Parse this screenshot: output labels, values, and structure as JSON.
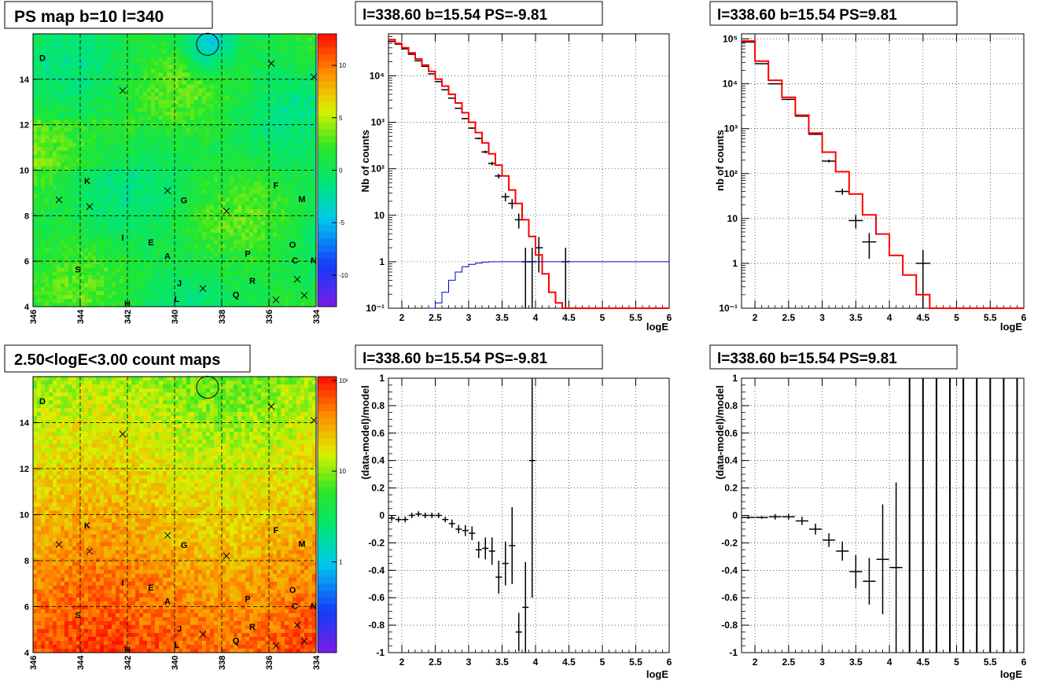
{
  "palette": {
    "background": "#ffffff",
    "axis": "#000000",
    "grid": "#000000",
    "data_series": "#000000",
    "model_series": "#ff0000",
    "background_model_series": "#0000cc"
  },
  "chart_data": [
    {
      "type": "heatmap",
      "title": "PS map b=10 l=340",
      "x_ticks": [
        "346",
        "344",
        "342",
        "340",
        "338",
        "336",
        "334"
      ],
      "y_ticks": [
        "4",
        "6",
        "8",
        "10",
        "12",
        "14"
      ],
      "xlim": [
        346,
        334
      ],
      "ylim": [
        4,
        16
      ],
      "grid": true,
      "circle_marker": {
        "l": 338.6,
        "b": 15.54
      },
      "colorbar": {
        "scale": "linear",
        "ticks": [
          "10",
          "5",
          "0",
          "-5",
          "-10"
        ],
        "range": [
          -13,
          13
        ]
      },
      "sources": [
        {
          "label": "D",
          "l": 345.6,
          "b": 14.8
        },
        {
          "label": "K",
          "l": 343.7,
          "b": 9.4
        },
        {
          "label": "G",
          "l": 339.6,
          "b": 8.55
        },
        {
          "label": "F",
          "l": 335.7,
          "b": 9.2
        },
        {
          "label": "M",
          "l": 334.6,
          "b": 8.6
        },
        {
          "label": "I",
          "l": 342.2,
          "b": 6.9
        },
        {
          "label": "E",
          "l": 341.0,
          "b": 6.7
        },
        {
          "label": "A",
          "l": 340.3,
          "b": 6.1
        },
        {
          "label": "P",
          "l": 336.9,
          "b": 6.2
        },
        {
          "label": "O",
          "l": 335.0,
          "b": 6.6
        },
        {
          "label": "C",
          "l": 334.9,
          "b": 5.9
        },
        {
          "label": "N",
          "l": 334.1,
          "b": 5.9
        },
        {
          "label": "S",
          "l": 344.1,
          "b": 5.5
        },
        {
          "label": "J",
          "l": 339.8,
          "b": 4.9
        },
        {
          "label": "R",
          "l": 336.7,
          "b": 5.0
        },
        {
          "label": "L",
          "l": 339.9,
          "b": 4.2
        },
        {
          "label": "Q",
          "l": 337.4,
          "b": 4.4
        },
        {
          "label": "H",
          "l": 342.0,
          "b": 4.0
        }
      ],
      "cross_markers": [
        {
          "l": 335.9,
          "b": 14.7
        },
        {
          "l": 342.2,
          "b": 13.5
        },
        {
          "l": 334.1,
          "b": 14.1
        },
        {
          "l": 344.9,
          "b": 8.7
        },
        {
          "l": 343.6,
          "b": 8.4
        },
        {
          "l": 340.3,
          "b": 9.1
        },
        {
          "l": 337.8,
          "b": 8.2
        },
        {
          "l": 338.8,
          "b": 4.8
        },
        {
          "l": 335.7,
          "b": 4.3
        },
        {
          "l": 334.8,
          "b": 5.2
        },
        {
          "l": 334.5,
          "b": 4.5
        }
      ]
    },
    {
      "type": "line",
      "title": "l=338.60 b=15.54 PS=-9.81",
      "xlabel": "logE",
      "ylabel": "Nb of counts",
      "y_scale": "log",
      "xlim": [
        1.8,
        6
      ],
      "ylim": [
        0.1,
        80000
      ],
      "x_ticks": [
        "2",
        "2.5",
        "3",
        "3.5",
        "4",
        "4.5",
        "5",
        "5.5",
        "6"
      ],
      "y_ticks": [
        {
          "v": 0.1,
          "label": "10⁻¹"
        },
        {
          "v": 1,
          "label": "1"
        },
        {
          "v": 10,
          "label": "10"
        },
        {
          "v": 100,
          "label": "10²"
        },
        {
          "v": 1000,
          "label": "10³"
        },
        {
          "v": 10000,
          "label": "10⁴"
        }
      ],
      "grid": true,
      "series": [
        {
          "kind": "data",
          "points": [
            [
              1.85,
              55000
            ],
            [
              1.95,
              48000
            ],
            [
              2.05,
              38000
            ],
            [
              2.15,
              29000
            ],
            [
              2.25,
              21000
            ],
            [
              2.35,
              16000
            ],
            [
              2.45,
              11000
            ],
            [
              2.55,
              7500
            ],
            [
              2.65,
              5000
            ],
            [
              2.75,
              3300
            ],
            [
              2.85,
              2000
            ],
            [
              2.95,
              1200
            ],
            [
              3.05,
              750
            ],
            [
              3.15,
              450
            ],
            [
              3.25,
              230
            ],
            [
              3.35,
              130
            ],
            [
              3.45,
              70
            ],
            [
              3.55,
              25
            ],
            [
              3.65,
              18
            ],
            [
              3.75,
              8
            ],
            [
              3.85,
              1
            ],
            [
              3.95,
              1
            ],
            [
              4.05,
              2
            ],
            [
              4.45,
              1
            ]
          ]
        },
        {
          "kind": "model",
          "steps": [
            [
              1.8,
              60000
            ],
            [
              1.9,
              50000
            ],
            [
              2.0,
              40000
            ],
            [
              2.1,
              31000
            ],
            [
              2.2,
              23000
            ],
            [
              2.3,
              17000
            ],
            [
              2.4,
              12500
            ],
            [
              2.5,
              8500
            ],
            [
              2.6,
              6000
            ],
            [
              2.7,
              4000
            ],
            [
              2.8,
              2600
            ],
            [
              2.9,
              1600
            ],
            [
              3.0,
              1000
            ],
            [
              3.1,
              600
            ],
            [
              3.2,
              360
            ],
            [
              3.3,
              210
            ],
            [
              3.4,
              120
            ],
            [
              3.5,
              70
            ],
            [
              3.6,
              35
            ],
            [
              3.7,
              18
            ],
            [
              3.8,
              8
            ],
            [
              3.9,
              3.5
            ],
            [
              4.0,
              1.4
            ],
            [
              4.1,
              0.55
            ],
            [
              4.2,
              0.22
            ],
            [
              4.3,
              0.13
            ],
            [
              4.4,
              0.1
            ],
            [
              6.0,
              0.1
            ]
          ]
        },
        {
          "kind": "background_model",
          "steps": [
            [
              2.4,
              0.1
            ],
            [
              2.5,
              0.13
            ],
            [
              2.6,
              0.22
            ],
            [
              2.7,
              0.4
            ],
            [
              2.8,
              0.6
            ],
            [
              2.9,
              0.78
            ],
            [
              3.0,
              0.88
            ],
            [
              3.1,
              0.94
            ],
            [
              3.2,
              0.98
            ],
            [
              3.3,
              1.0
            ],
            [
              6.0,
              1.0
            ]
          ]
        }
      ]
    },
    {
      "type": "line",
      "title": "l=338.60 b=15.54 PS=9.81",
      "xlabel": "logE",
      "ylabel": "nb of counts",
      "y_scale": "log",
      "xlim": [
        1.8,
        6
      ],
      "ylim": [
        0.1,
        130000
      ],
      "x_ticks": [
        "2",
        "2.5",
        "3",
        "3.5",
        "4",
        "4.5",
        "5",
        "5.5",
        "6"
      ],
      "y_ticks": [
        {
          "v": 0.1,
          "label": "10⁻¹"
        },
        {
          "v": 1,
          "label": "1"
        },
        {
          "v": 10,
          "label": "10"
        },
        {
          "v": 100,
          "label": "10²"
        },
        {
          "v": 1000,
          "label": "10³"
        },
        {
          "v": 10000,
          "label": "10⁴"
        },
        {
          "v": 100000,
          "label": "10⁵"
        }
      ],
      "grid": true,
      "series": [
        {
          "kind": "data",
          "points": [
            [
              1.9,
              85000
            ],
            [
              2.1,
              28000
            ],
            [
              2.3,
              10000
            ],
            [
              2.5,
              4500
            ],
            [
              2.7,
              1900
            ],
            [
              2.9,
              750
            ],
            [
              3.1,
              190
            ],
            [
              3.3,
              40
            ],
            [
              3.5,
              9
            ],
            [
              3.7,
              3
            ],
            [
              4.5,
              1
            ]
          ]
        },
        {
          "kind": "model",
          "steps": [
            [
              1.8,
              90000
            ],
            [
              2.0,
              32000
            ],
            [
              2.2,
              12000
            ],
            [
              2.4,
              5000
            ],
            [
              2.6,
              2000
            ],
            [
              2.8,
              800
            ],
            [
              3.0,
              300
            ],
            [
              3.2,
              110
            ],
            [
              3.4,
              35
            ],
            [
              3.6,
              12
            ],
            [
              3.8,
              4.5
            ],
            [
              4.0,
              1.5
            ],
            [
              4.2,
              0.55
            ],
            [
              4.4,
              0.2
            ],
            [
              4.6,
              0.1
            ],
            [
              6.0,
              0.1
            ]
          ]
        }
      ]
    },
    {
      "type": "heatmap",
      "title": "2.50<logE<3.00 count maps",
      "x_ticks": [
        "346",
        "344",
        "342",
        "340",
        "338",
        "336",
        "334"
      ],
      "y_ticks": [
        "4",
        "6",
        "8",
        "10",
        "12",
        "14"
      ],
      "xlim": [
        346,
        334
      ],
      "ylim": [
        4,
        16
      ],
      "grid": true,
      "circle_marker": {
        "l": 338.6,
        "b": 15.54
      },
      "colorbar": {
        "scale": "log",
        "ticks": [
          {
            "v": 100,
            "label": "10²"
          },
          {
            "v": 10,
            "label": "10"
          },
          {
            "v": 1,
            "label": "1"
          }
        ],
        "range": [
          0.1,
          110
        ]
      }
    },
    {
      "type": "scatter",
      "title": "l=338.60 b=15.54 PS=-9.81",
      "xlabel": "logE",
      "ylabel": "(data-model)/model",
      "xlim": [
        1.8,
        6
      ],
      "ylim": [
        -1,
        1
      ],
      "x_ticks": [
        "2",
        "2.5",
        "3",
        "3.5",
        "4",
        "4.5",
        "5",
        "5.5",
        "6"
      ],
      "y_ticks": [
        "-1",
        "-0.8",
        "-0.6",
        "-0.4",
        "-0.2",
        "0",
        "0.2",
        "0.4",
        "0.6",
        "0.8",
        "1"
      ],
      "grid": true,
      "points": [
        {
          "x": 1.85,
          "y": -0.02,
          "err": 0.02
        },
        {
          "x": 1.95,
          "y": -0.03,
          "err": 0.02
        },
        {
          "x": 2.05,
          "y": -0.03,
          "err": 0.02
        },
        {
          "x": 2.15,
          "y": 0.0,
          "err": 0.02
        },
        {
          "x": 2.25,
          "y": 0.01,
          "err": 0.02
        },
        {
          "x": 2.35,
          "y": 0.0,
          "err": 0.02
        },
        {
          "x": 2.45,
          "y": 0.0,
          "err": 0.02
        },
        {
          "x": 2.55,
          "y": 0.0,
          "err": 0.02
        },
        {
          "x": 2.65,
          "y": -0.03,
          "err": 0.02
        },
        {
          "x": 2.75,
          "y": -0.06,
          "err": 0.03
        },
        {
          "x": 2.85,
          "y": -0.1,
          "err": 0.03
        },
        {
          "x": 2.95,
          "y": -0.11,
          "err": 0.04
        },
        {
          "x": 3.05,
          "y": -0.13,
          "err": 0.05
        },
        {
          "x": 3.15,
          "y": -0.25,
          "err": 0.06
        },
        {
          "x": 3.25,
          "y": -0.24,
          "err": 0.08
        },
        {
          "x": 3.35,
          "y": -0.26,
          "err": 0.1
        },
        {
          "x": 3.45,
          "y": -0.45,
          "err": 0.12
        },
        {
          "x": 3.55,
          "y": -0.35,
          "err": 0.16
        },
        {
          "x": 3.65,
          "y": -0.22,
          "err": 0.28
        },
        {
          "x": 3.75,
          "y": -0.85,
          "err": 0.14
        },
        {
          "x": 3.85,
          "y": -0.67,
          "err": 0.33
        },
        {
          "x": 3.95,
          "y": 0.4,
          "err": 1.0
        }
      ]
    },
    {
      "type": "scatter",
      "title": "l=338.60 b=15.54 PS=9.81",
      "xlabel": "logE",
      "ylabel": "(data-model)/model",
      "xlim": [
        1.8,
        6
      ],
      "ylim": [
        -1,
        1
      ],
      "x_ticks": [
        "2",
        "2.5",
        "3",
        "3.5",
        "4",
        "4.5",
        "5",
        "5.5",
        "6"
      ],
      "y_ticks": [
        "-1",
        "-0.8",
        "-0.6",
        "-0.4",
        "-0.2",
        "0",
        "0.2",
        "0.4",
        "0.6",
        "0.8",
        "1"
      ],
      "grid": true,
      "points": [
        {
          "x": 1.9,
          "y": -0.015,
          "err": 0.01
        },
        {
          "x": 2.1,
          "y": -0.015,
          "err": 0.01
        },
        {
          "x": 2.3,
          "y": -0.01,
          "err": 0.02
        },
        {
          "x": 2.5,
          "y": -0.01,
          "err": 0.02
        },
        {
          "x": 2.7,
          "y": -0.04,
          "err": 0.03
        },
        {
          "x": 2.9,
          "y": -0.1,
          "err": 0.04
        },
        {
          "x": 3.1,
          "y": -0.18,
          "err": 0.05
        },
        {
          "x": 3.3,
          "y": -0.26,
          "err": 0.07
        },
        {
          "x": 3.5,
          "y": -0.41,
          "err": 0.12
        },
        {
          "x": 3.7,
          "y": -0.48,
          "err": 0.17
        },
        {
          "x": 3.9,
          "y": -0.32,
          "err": 0.4
        },
        {
          "x": 4.1,
          "y": -0.38,
          "err": 0.62
        },
        {
          "x": 4.3,
          "y": 1.0,
          "err": 0
        },
        {
          "x": 4.5,
          "y": 1.0,
          "err": 0
        },
        {
          "x": 4.7,
          "y": 1.0,
          "err": 0
        },
        {
          "x": 4.9,
          "y": 1.0,
          "err": 0
        },
        {
          "x": 5.1,
          "y": 1.0,
          "err": 0
        },
        {
          "x": 5.3,
          "y": 1.0,
          "err": 0
        },
        {
          "x": 5.5,
          "y": 1.0,
          "err": 0
        },
        {
          "x": 5.7,
          "y": 1.0,
          "err": 0
        },
        {
          "x": 5.9,
          "y": 1.0,
          "err": 0
        }
      ],
      "full_range_bars_from": 4.3
    }
  ]
}
